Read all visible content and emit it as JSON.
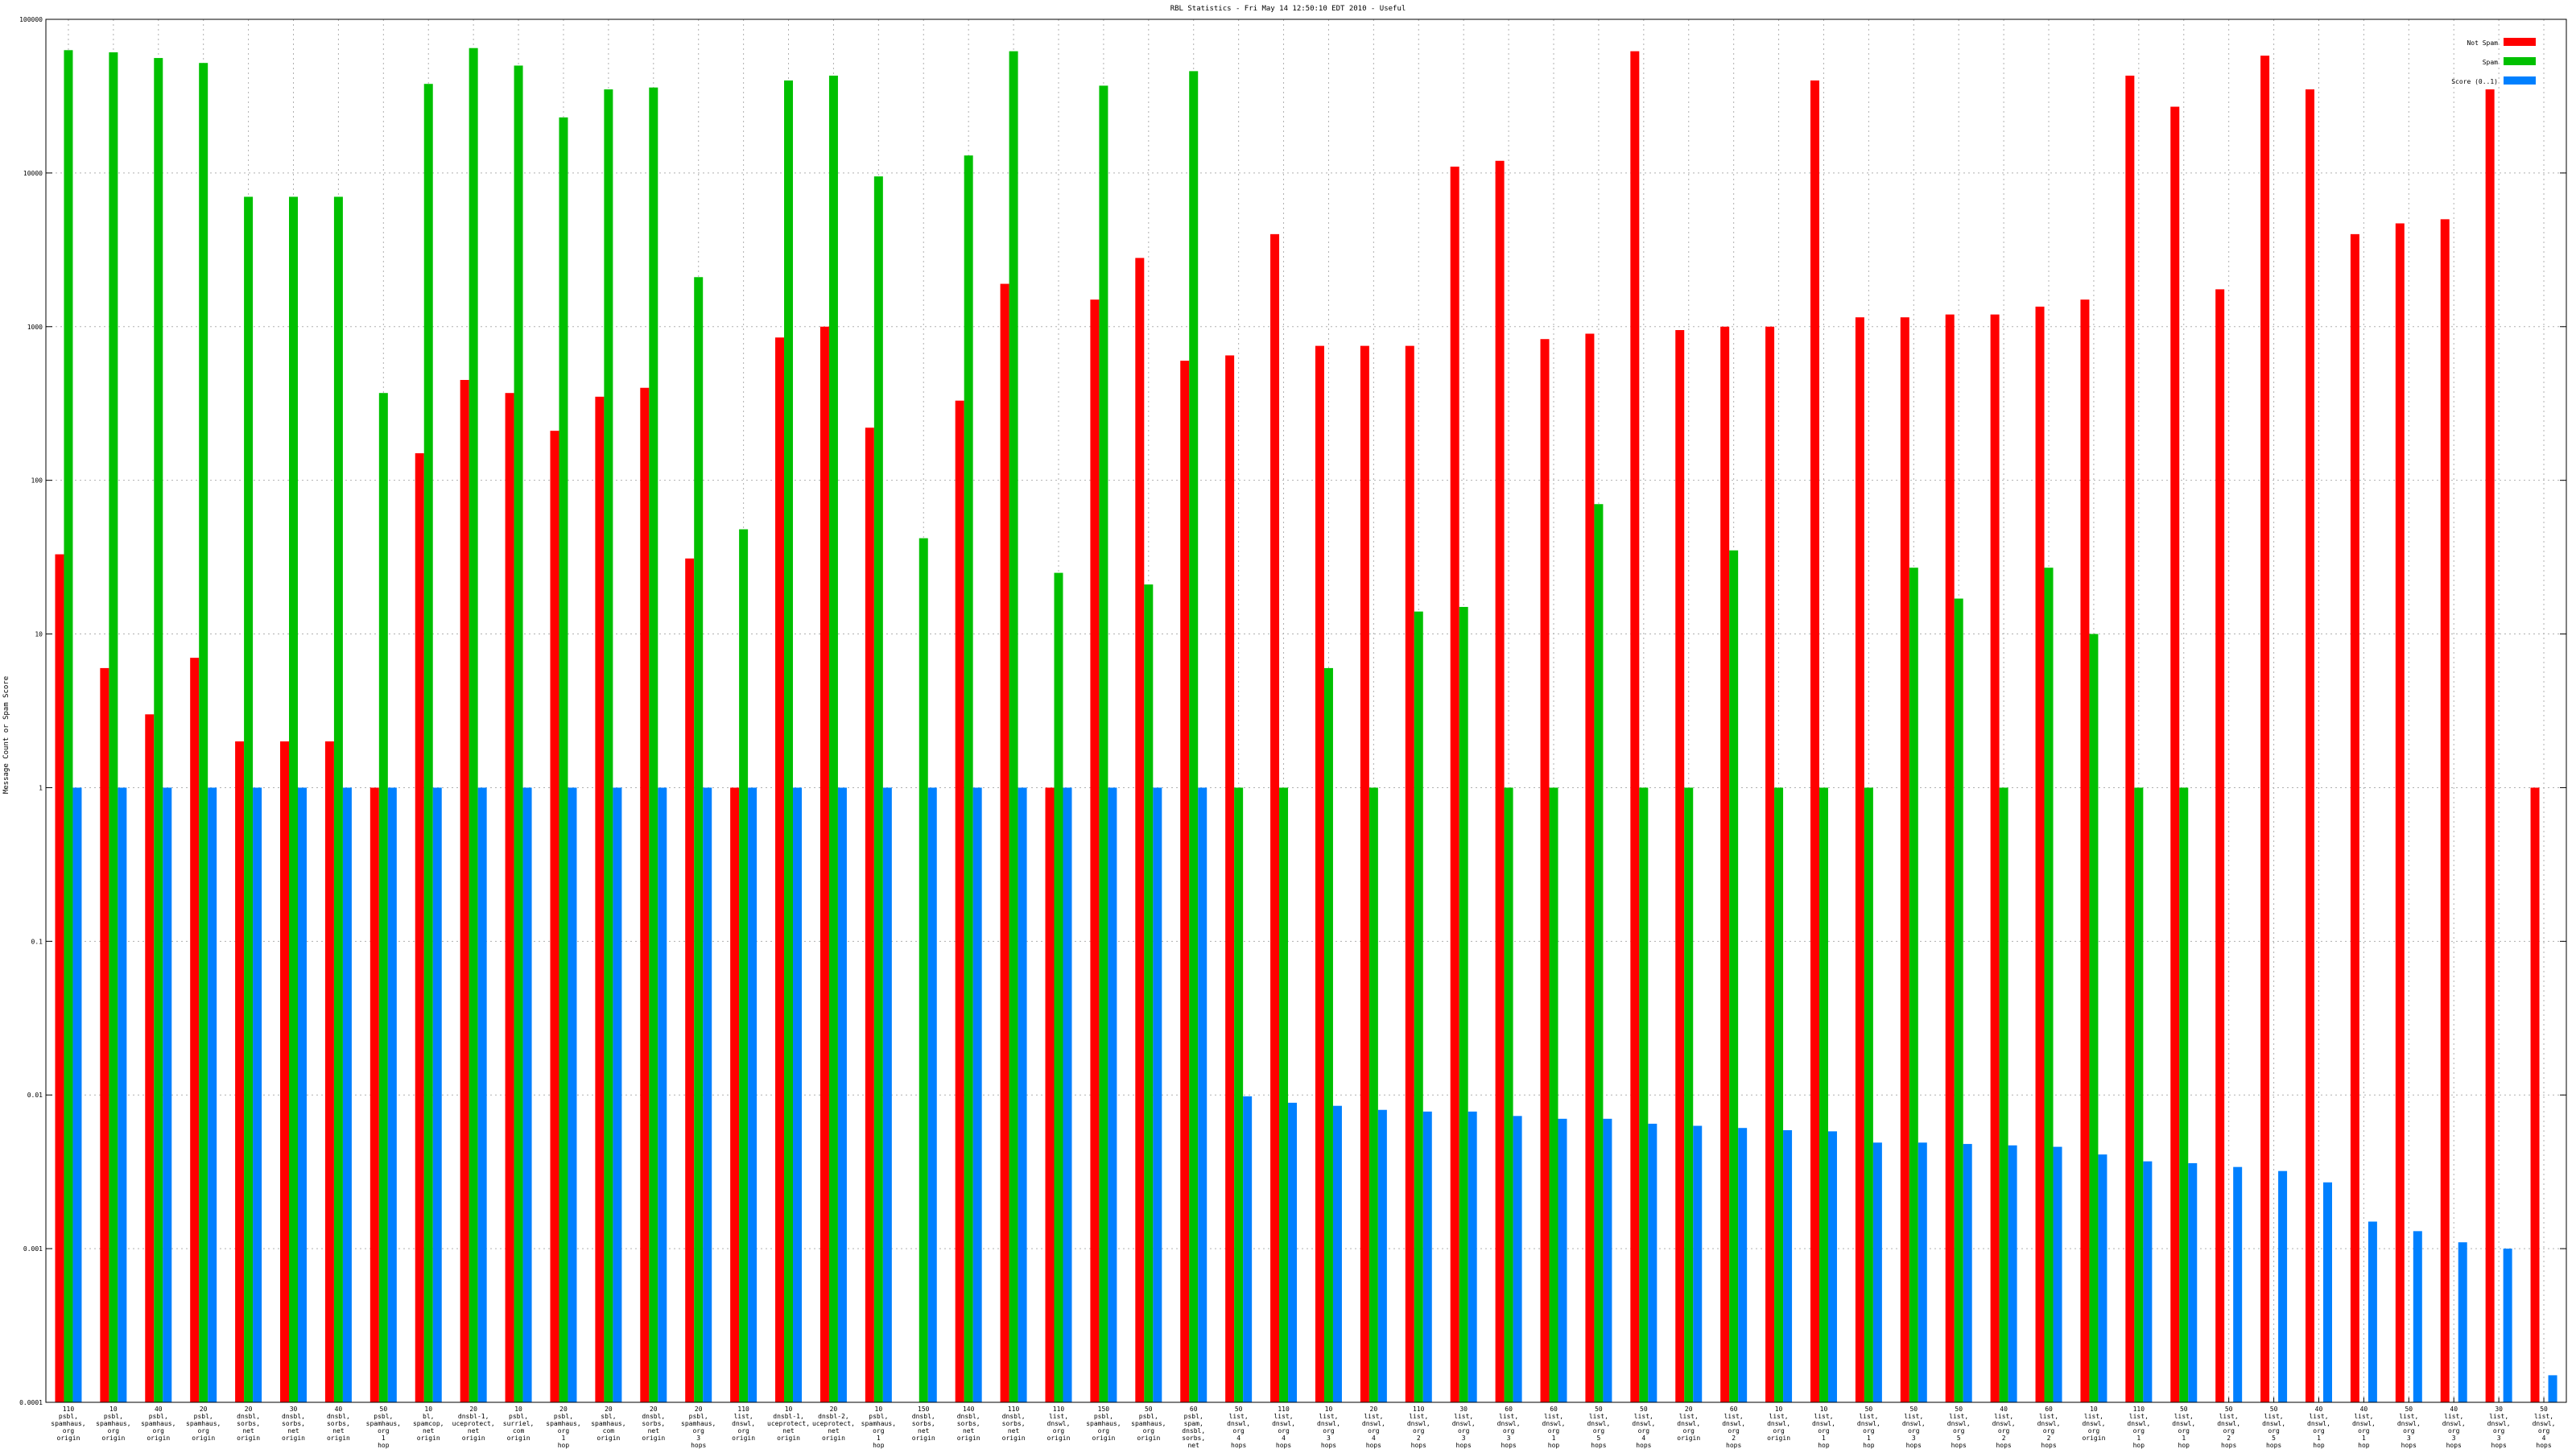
{
  "chart_data": {
    "type": "bar",
    "title": "RBL Statistics - Fri May 14 12:50:10 EDT 2010 - Useful",
    "xlabel": "",
    "ylabel": "Message Count or Spam Score",
    "yscale": "log",
    "ylim": [
      0.0001,
      100000
    ],
    "ytick_labels": [
      "100000",
      "10000",
      "1000",
      "100",
      "10",
      "1",
      "0.1",
      "0.01",
      "0.001",
      "0.0001"
    ],
    "grid": true,
    "legend_position": "top-right",
    "colors": {
      "Not Spam": "#ff0000",
      "Spam": "#00c000",
      "Score (0..1)": "#0080ff"
    },
    "categories": [
      "110 psbl, spamhaus, org origin",
      "10 psbl, spamhaus, org origin",
      "40 psbl, spamhaus, org origin",
      "20 psbl, spamhaus, org origin",
      "20 dnsbl, sorbs, net origin",
      "30 dnsbl, sorbs, net origin",
      "40 dnsbl, sorbs, net origin",
      "50 psbl, spamhaus, org 1 hop",
      "10 bl, spamcop, net origin",
      "20 dnsbl-1, uceprotect, net origin",
      "10 psbl, surriel, com origin",
      "20 psbl, spamhaus, org 1 hop",
      "20 sbl, spamhaus, com origin",
      "20 dnsbl, sorbs, net origin",
      "20 psbl, spamhaus, org 3 hops",
      "110 list, dnswl, org origin",
      "10 dnsbl-1, uceprotect, net origin",
      "20 dnsbl-2, uceprotect, net origin",
      "10 psbl, spamhaus, org 1 hop",
      "150 dnsbl, sorbs, net origin",
      "140 dnsbl, sorbs, net origin",
      "110 dnsbl, sorbs, net origin",
      "110 list, dnswl, org origin",
      "150 psbl, spamhaus, org origin",
      "50 psbl, spamhaus, org origin",
      "60 psbl, spam, dnsbl, sorbs, net origin",
      "50 list, dnswl, org 4 hops",
      "110 list, dnswl, org 4 hops",
      "10 list, dnswl, org 3 hops",
      "20 list, dnswl, org 4 hops",
      "110 list, dnswl, org 2 hops",
      "30 list, dnswl, org 3 hops",
      "60 list, dnswl, org 3 hops",
      "60 list, dnswl, org 1 hop",
      "50 list, dnswl, org 5 hops",
      "50 list, dnswl, org 4 hops",
      "20 list, dnswl, org origin",
      "60 list, dnswl, org 2 hops",
      "10 list, dnswl, org origin",
      "10 list, dnswl, org 1 hop",
      "50 list, dnswl, org 1 hop",
      "50 list, dnswl, org 3 hops",
      "50 list, dnswl, org 5 hops",
      "40 list, dnswl, org 2 hops",
      "60 list, dnswl, org 2 hops",
      "10 list, dnswl, org origin",
      "110 list, dnswl, org 1 hop",
      "50 list, dnswl, org 1 hop",
      "50 list, dnswl, org 2 hops",
      "50 list, dnswl, org 5 hops",
      "40 list, dnswl, org 1 hop",
      "40 list, dnswl, org 1 hop",
      "50 list, dnswl, org 3 hops",
      "40 list, dnswl, org 3 hops",
      "30 list, dnswl, org 3 hops",
      "50 list, dnswl, org 4 hops"
    ],
    "series": [
      {
        "name": "Not Spam",
        "values": [
          33,
          6,
          3,
          7,
          2,
          2,
          2,
          1,
          150,
          450,
          370,
          210,
          350,
          400,
          31,
          1,
          850,
          1000,
          220,
          null,
          330,
          1900,
          1,
          1500,
          2800,
          600,
          650,
          4000,
          750,
          750,
          750,
          11000,
          12000,
          830,
          900,
          62000,
          950,
          1000,
          1000,
          40000,
          1150,
          1150,
          1200,
          1200,
          1350,
          1500,
          43000,
          27000,
          1750,
          58000,
          35000,
          4000,
          4700,
          5000,
          35000,
          1
        ]
      },
      {
        "name": "Spam",
        "values": [
          63000,
          61000,
          56000,
          52000,
          7000,
          7000,
          7000,
          370,
          38000,
          65000,
          50000,
          23000,
          35000,
          36000,
          2100,
          48,
          40000,
          43000,
          9500,
          42,
          13000,
          62000,
          25,
          37000,
          21,
          46000,
          1,
          1,
          6,
          1,
          14,
          15,
          1,
          1,
          70,
          1,
          1,
          35,
          1,
          1,
          1,
          27,
          17,
          1,
          27,
          10,
          1,
          1,
          null,
          null,
          null,
          null,
          null,
          null,
          null,
          null
        ]
      },
      {
        "name": "Score (0..1)",
        "values": [
          1,
          1,
          1,
          1,
          1,
          1,
          1,
          1,
          1,
          1,
          1,
          1,
          1,
          1,
          1,
          1,
          1,
          1,
          1,
          1,
          1,
          1,
          1,
          1,
          1,
          1,
          0.0098,
          0.0089,
          0.0085,
          0.008,
          0.0078,
          0.0078,
          0.0073,
          0.007,
          0.007,
          0.0065,
          0.0063,
          0.0061,
          0.0059,
          0.0058,
          0.0049,
          0.0049,
          0.0048,
          0.0047,
          0.0046,
          0.0041,
          0.0037,
          0.0036,
          0.0034,
          0.0032,
          0.0027,
          0.0015,
          0.0013,
          0.0011,
          0.001,
          0.00015
        ]
      }
    ]
  }
}
